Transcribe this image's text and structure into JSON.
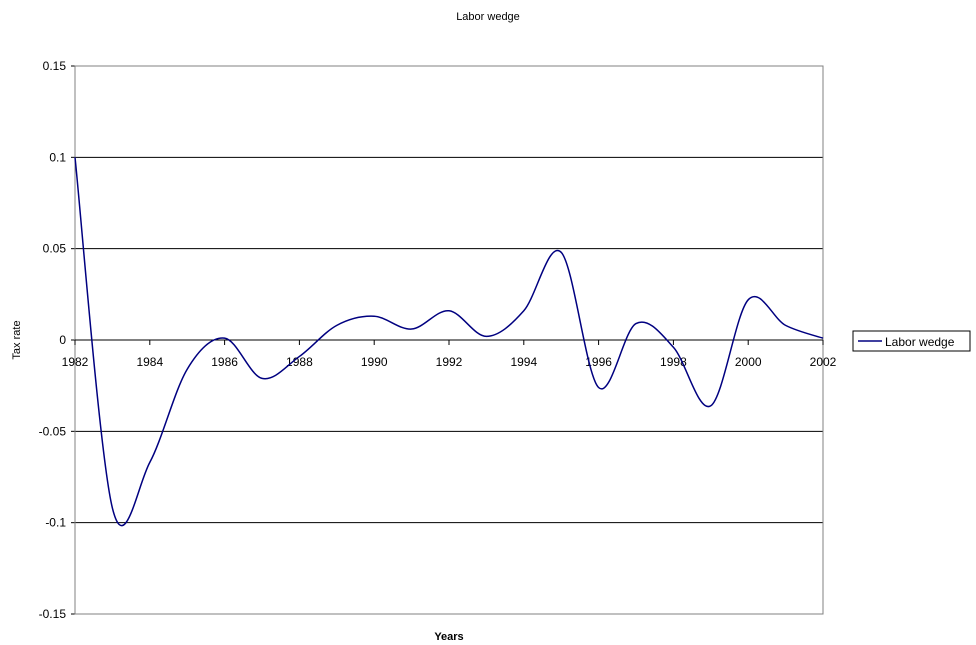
{
  "chart_data": {
    "type": "line",
    "title": "Labor wedge",
    "xlabel": "Years",
    "ylabel": "Tax rate",
    "xlim": [
      1982,
      2002
    ],
    "ylim": [
      -0.15,
      0.15
    ],
    "x_ticks": [
      "1982",
      "1984",
      "1986",
      "1988",
      "1990",
      "1992",
      "1994",
      "1996",
      "1998",
      "2000",
      "2002"
    ],
    "y_ticks": [
      "0.15",
      "0.1",
      "0.05",
      "0",
      "-0.05",
      "-0.1",
      "-0.15"
    ],
    "grid": "horizontal",
    "legend_position": "right",
    "series": [
      {
        "name": "Labor wedge",
        "color": "#000080",
        "x": [
          1982,
          1983,
          1984,
          1985,
          1986,
          1987,
          1988,
          1989,
          1990,
          1991,
          1992,
          1993,
          1994,
          1995,
          1996,
          1997,
          1998,
          1999,
          2000,
          2001,
          2002
        ],
        "values": [
          0.1,
          -0.092,
          -0.067,
          -0.016,
          0.001,
          -0.021,
          -0.009,
          0.008,
          0.013,
          0.006,
          0.016,
          0.002,
          0.016,
          0.048,
          -0.026,
          0.009,
          -0.004,
          -0.036,
          0.022,
          0.008,
          0.001
        ]
      }
    ]
  }
}
